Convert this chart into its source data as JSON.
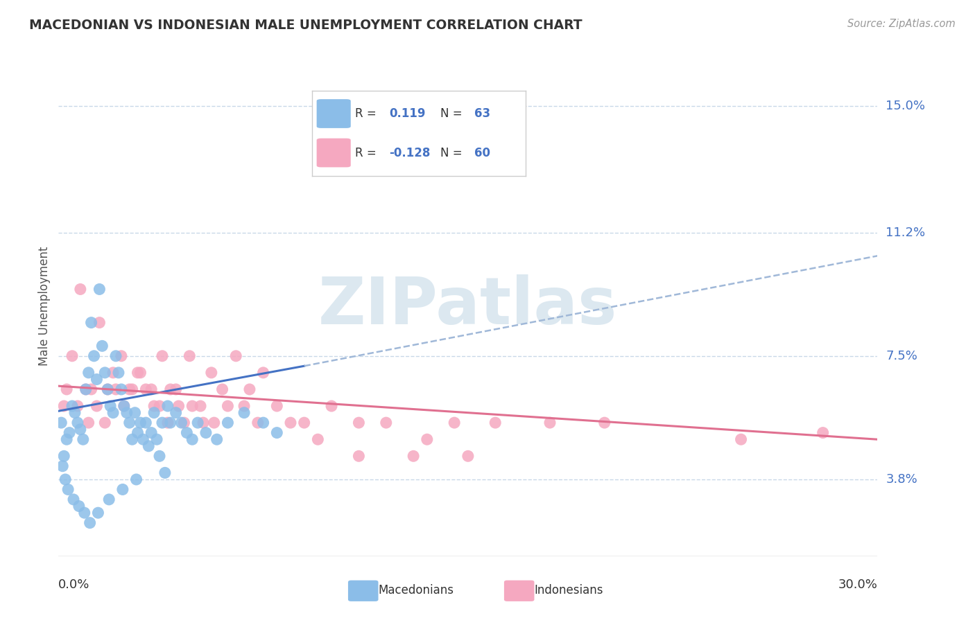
{
  "title": "MACEDONIAN VS INDONESIAN MALE UNEMPLOYMENT CORRELATION CHART",
  "source": "Source: ZipAtlas.com",
  "ylabel": "Male Unemployment",
  "xlim": [
    0.0,
    30.0
  ],
  "ylim_bottom": 1.5,
  "ylim_top": 16.5,
  "ytick_vals": [
    3.8,
    7.5,
    11.2,
    15.0
  ],
  "ytick_labels": [
    "3.8%",
    "7.5%",
    "11.2%",
    "15.0%"
  ],
  "macedonian_color": "#8bbde8",
  "indonesian_color": "#f5a8c0",
  "macedonian_line_color": "#4472c4",
  "indonesian_line_color": "#e07090",
  "dashed_line_color": "#a0b8d8",
  "grid_color": "#c8d8e8",
  "watermark_text": "ZIPatlas",
  "watermark_color": "#dce8f0",
  "legend_r1_label": "R = ",
  "legend_r1_val": "0.119",
  "legend_n1_label": "N = ",
  "legend_n1_val": "63",
  "legend_r2_label": "R = ",
  "legend_r2_val": "-0.128",
  "legend_n2_label": "N = ",
  "legend_n2_val": "60",
  "bottom_legend_mac": "Macedonians",
  "bottom_legend_ind": "Indonesians",
  "mac_x": [
    0.1,
    0.2,
    0.3,
    0.4,
    0.5,
    0.6,
    0.7,
    0.8,
    0.9,
    1.0,
    1.1,
    1.2,
    1.3,
    1.4,
    1.5,
    1.6,
    1.7,
    1.8,
    1.9,
    2.0,
    2.1,
    2.2,
    2.3,
    2.4,
    2.5,
    2.6,
    2.7,
    2.8,
    2.9,
    3.0,
    3.1,
    3.2,
    3.3,
    3.4,
    3.5,
    3.6,
    3.7,
    3.8,
    3.9,
    4.0,
    4.1,
    4.3,
    4.5,
    4.7,
    4.9,
    5.1,
    5.4,
    5.8,
    6.2,
    6.8,
    7.5,
    8.0,
    0.15,
    0.25,
    0.35,
    0.55,
    0.75,
    0.95,
    1.15,
    1.45,
    1.85,
    2.35,
    2.85
  ],
  "mac_y": [
    5.5,
    4.5,
    5.0,
    5.2,
    6.0,
    5.8,
    5.5,
    5.3,
    5.0,
    6.5,
    7.0,
    8.5,
    7.5,
    6.8,
    9.5,
    7.8,
    7.0,
    6.5,
    6.0,
    5.8,
    7.5,
    7.0,
    6.5,
    6.0,
    5.8,
    5.5,
    5.0,
    5.8,
    5.2,
    5.5,
    5.0,
    5.5,
    4.8,
    5.2,
    5.8,
    5.0,
    4.5,
    5.5,
    4.0,
    6.0,
    5.5,
    5.8,
    5.5,
    5.2,
    5.0,
    5.5,
    5.2,
    5.0,
    5.5,
    5.8,
    5.5,
    5.2,
    4.2,
    3.8,
    3.5,
    3.2,
    3.0,
    2.8,
    2.5,
    2.8,
    3.2,
    3.5,
    3.8
  ],
  "ind_x": [
    0.2,
    0.5,
    0.8,
    1.0,
    1.2,
    1.5,
    1.8,
    2.0,
    2.3,
    2.6,
    2.9,
    3.2,
    3.5,
    3.8,
    4.1,
    4.4,
    4.8,
    5.2,
    5.6,
    6.0,
    6.5,
    7.0,
    7.5,
    8.0,
    9.0,
    10.0,
    11.0,
    12.0,
    13.5,
    14.5,
    16.0,
    18.0,
    20.0,
    25.0,
    28.0,
    0.3,
    0.7,
    1.1,
    1.4,
    1.7,
    2.1,
    2.4,
    2.7,
    3.0,
    3.4,
    3.7,
    4.0,
    4.3,
    4.6,
    4.9,
    5.3,
    5.7,
    6.2,
    6.8,
    7.3,
    8.5,
    9.5,
    11.0,
    13.0,
    15.0
  ],
  "ind_y": [
    6.0,
    7.5,
    9.5,
    6.5,
    6.5,
    8.5,
    6.5,
    7.0,
    7.5,
    6.5,
    7.0,
    6.5,
    6.0,
    7.5,
    6.5,
    6.0,
    7.5,
    6.0,
    7.0,
    6.5,
    7.5,
    6.5,
    7.0,
    6.0,
    5.5,
    6.0,
    5.5,
    5.5,
    5.0,
    5.5,
    5.5,
    5.5,
    5.5,
    5.0,
    5.2,
    6.5,
    6.0,
    5.5,
    6.0,
    5.5,
    6.5,
    6.0,
    6.5,
    7.0,
    6.5,
    6.0,
    5.5,
    6.5,
    5.5,
    6.0,
    5.5,
    5.5,
    6.0,
    6.0,
    5.5,
    5.5,
    5.0,
    4.5,
    4.5,
    4.5
  ],
  "mac_reg_x0": 0.0,
  "mac_reg_y0": 5.85,
  "mac_reg_x1": 9.0,
  "mac_reg_y1": 7.2,
  "mac_dash_x0": 9.0,
  "mac_dash_y0": 7.2,
  "mac_dash_x1": 30.0,
  "mac_dash_y1": 10.5,
  "ind_reg_x0": 0.0,
  "ind_reg_y0": 6.6,
  "ind_reg_x1": 30.0,
  "ind_reg_y1": 5.0
}
